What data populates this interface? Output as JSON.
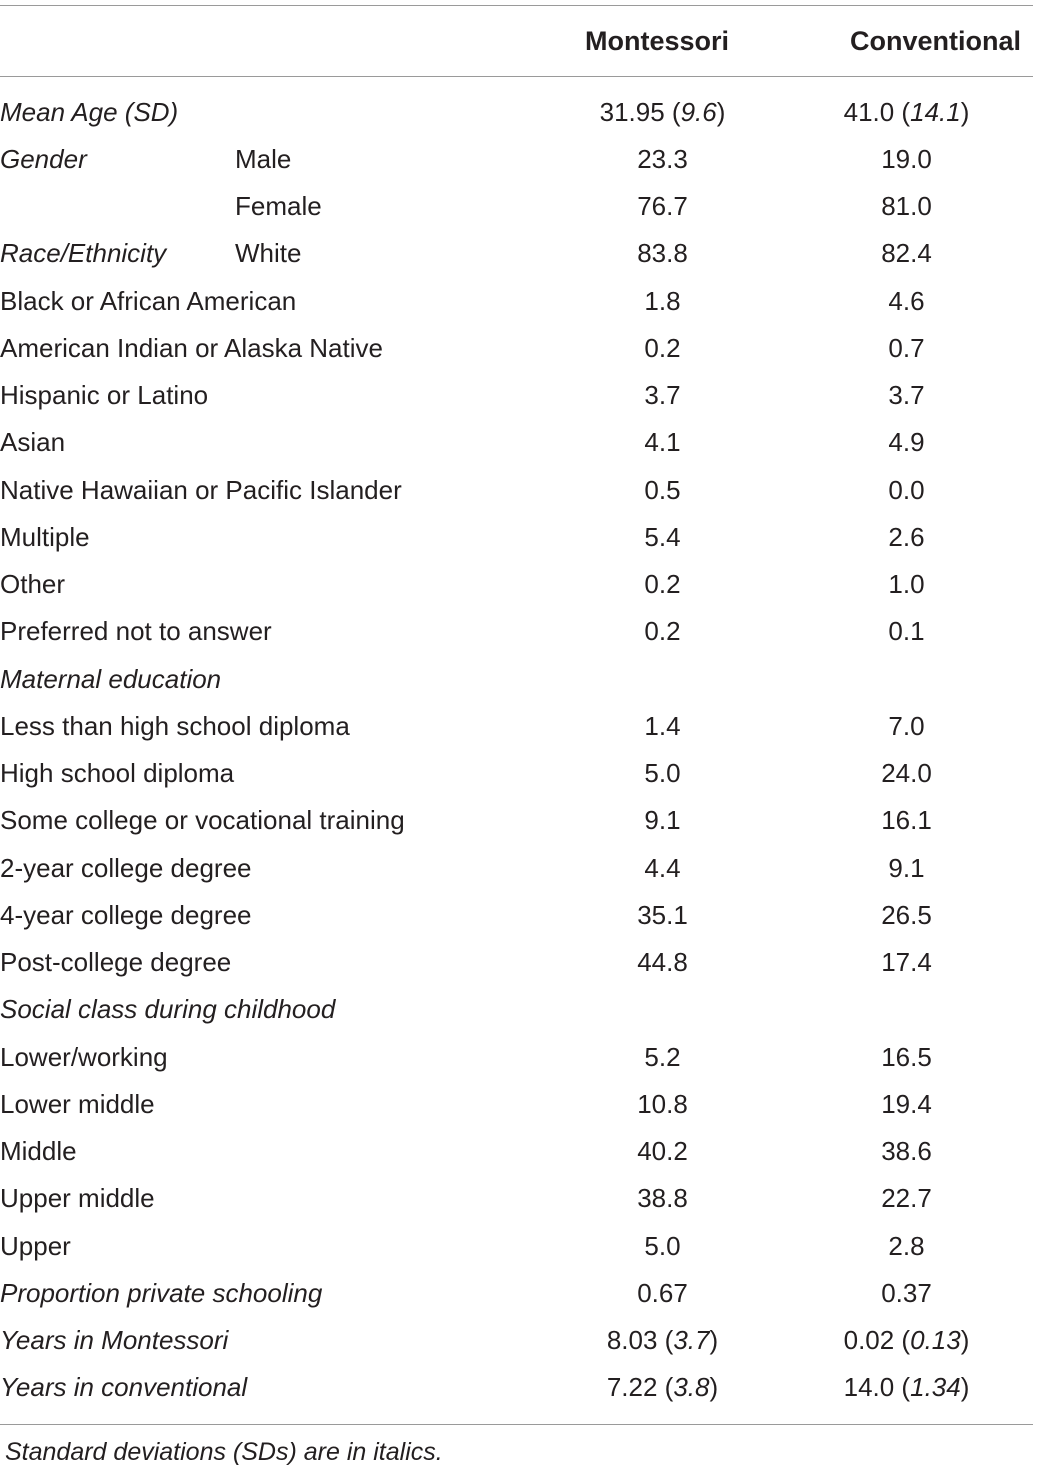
{
  "header": {
    "col1": "Montessori",
    "col2": "Conventional"
  },
  "rows": [
    {
      "label": "Mean Age (SD)",
      "sub": "",
      "m": "31.95 (",
      "m_sd": "9.6",
      "m_close": ")",
      "c": "41.0 (",
      "c_sd": "14.1",
      "c_close": ")"
    },
    {
      "label": "Gender",
      "sub": "Male",
      "m": "23.3",
      "c": "19.0"
    },
    {
      "label": "",
      "sub": "Female",
      "m": "76.7",
      "c": "81.0"
    },
    {
      "label": "Race/Ethnicity",
      "sub": "White",
      "m": "83.8",
      "c": "82.4"
    },
    {
      "item": "Black or African American",
      "m": "1.8",
      "c": "4.6"
    },
    {
      "item": "American Indian or Alaska Native",
      "m": "0.2",
      "c": "0.7"
    },
    {
      "item": "Hispanic or Latino",
      "m": "3.7",
      "c": "3.7"
    },
    {
      "item": "Asian",
      "m": "4.1",
      "c": "4.9"
    },
    {
      "item": "Native Hawaiian or Pacific Islander",
      "m": "0.5",
      "c": "0.0"
    },
    {
      "item": "Multiple",
      "m": "5.4",
      "c": "2.6"
    },
    {
      "item": "Other",
      "m": "0.2",
      "c": "1.0"
    },
    {
      "item": "Preferred not to answer",
      "m": "0.2",
      "c": "0.1"
    },
    {
      "section": "Maternal education"
    },
    {
      "item": "Less than high school diploma",
      "m": "1.4",
      "c": "7.0"
    },
    {
      "item": "High school diploma",
      "m": "5.0",
      "c": "24.0"
    },
    {
      "item": "Some college or vocational training",
      "m": "9.1",
      "c": "16.1"
    },
    {
      "item": "2-year college degree",
      "m": "4.4",
      "c": "9.1"
    },
    {
      "item": "4-year college degree",
      "m": "35.1",
      "c": "26.5"
    },
    {
      "item": "Post-college degree",
      "m": "44.8",
      "c": "17.4"
    },
    {
      "section": "Social class during childhood"
    },
    {
      "item": "Lower/working",
      "m": "5.2",
      "c": "16.5"
    },
    {
      "item": "Lower middle",
      "m": "10.8",
      "c": "19.4"
    },
    {
      "item": "Middle",
      "m": "40.2",
      "c": "38.6"
    },
    {
      "item": "Upper middle",
      "m": "38.8",
      "c": "22.7"
    },
    {
      "item": "Upper",
      "m": "5.0",
      "c": "2.8"
    },
    {
      "label": "Proportion private schooling",
      "m": "0.67",
      "c": "0.37"
    },
    {
      "label": "Years in Montessori",
      "m": "8.03 (",
      "m_sd": "3.7",
      "m_close": ")",
      "c": "0.02 (",
      "c_sd": "0.13",
      "c_close": ")"
    },
    {
      "label": "Years in conventional",
      "m": "7.22 (",
      "m_sd": "3.8",
      "m_close": ")",
      "c": "14.0 (",
      "c_sd": "1.34",
      "c_close": ")"
    }
  ],
  "footnote": "Standard deviations (SDs) are in italics."
}
